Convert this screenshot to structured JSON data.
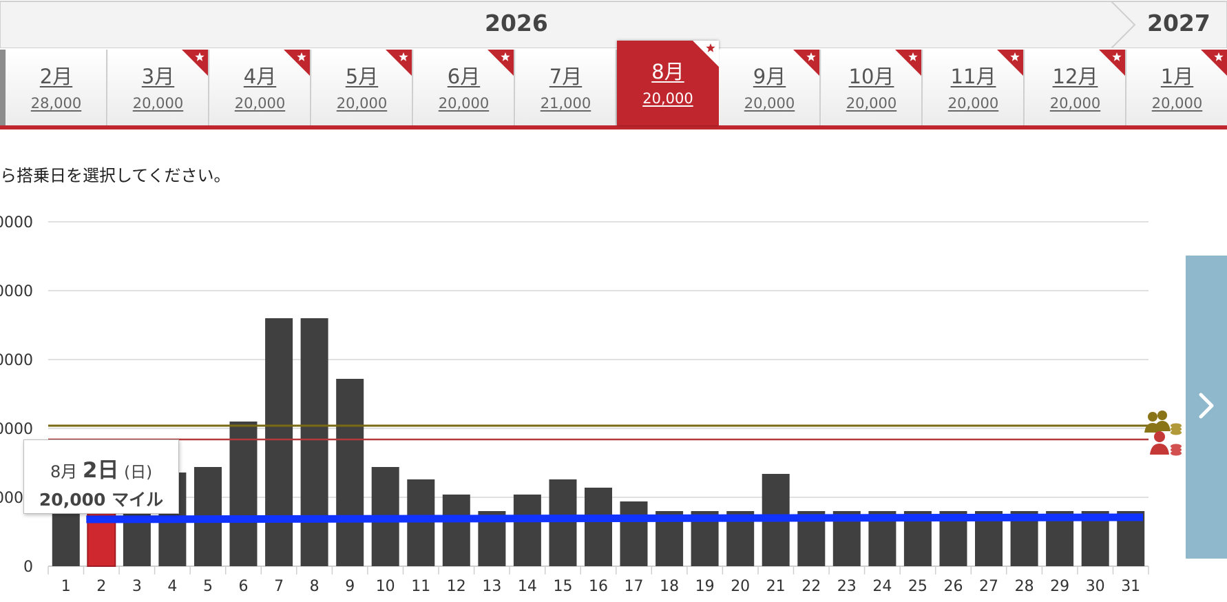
{
  "year_bar": {
    "current_year": "2026",
    "next_year": "2027"
  },
  "month_tabs": [
    {
      "label": "2月",
      "miles": "28,000",
      "flag": false,
      "active": false
    },
    {
      "label": "3月",
      "miles": "20,000",
      "flag": true,
      "active": false
    },
    {
      "label": "4月",
      "miles": "20,000",
      "flag": true,
      "active": false
    },
    {
      "label": "5月",
      "miles": "20,000",
      "flag": true,
      "active": false
    },
    {
      "label": "6月",
      "miles": "20,000",
      "flag": true,
      "active": false
    },
    {
      "label": "7月",
      "miles": "21,000",
      "flag": false,
      "active": false
    },
    {
      "label": "8月",
      "miles": "20,000",
      "flag": true,
      "active": true
    },
    {
      "label": "9月",
      "miles": "20,000",
      "flag": true,
      "active": false
    },
    {
      "label": "10月",
      "miles": "20,000",
      "flag": true,
      "active": false
    },
    {
      "label": "11月",
      "miles": "20,000",
      "flag": true,
      "active": false
    },
    {
      "label": "12月",
      "miles": "20,000",
      "flag": true,
      "active": false
    },
    {
      "label": "1月",
      "miles": "20,000",
      "flag": true,
      "active": false
    }
  ],
  "instruction": "ら搭乗日を選択してください。",
  "tooltip": {
    "month": "8月",
    "day": "2日",
    "dow": "(日)",
    "miles": "20,000 マイル"
  },
  "colors": {
    "accent_red": "#c0262d",
    "bar": "#404040",
    "bar_selected": "#d0282f",
    "baseline_blue": "#1133ff",
    "line_olive": "#7a6a12",
    "line_red": "#b23a3a",
    "panel": "#8fb8cc"
  },
  "icons": {
    "next": "chevron-right-icon",
    "legend_top": "group-coins-icon",
    "legend_bottom": "person-coins-icon"
  },
  "chart_data": {
    "type": "bar",
    "categories": [
      "1",
      "2",
      "3",
      "4",
      "5",
      "6",
      "7",
      "8",
      "9",
      "10",
      "11",
      "12",
      "13",
      "14",
      "15",
      "16",
      "17",
      "18",
      "19",
      "20",
      "21",
      "22",
      "23",
      "24",
      "25",
      "26",
      "27",
      "28",
      "29",
      "30",
      "31"
    ],
    "values": [
      20000,
      20000,
      20000,
      34000,
      36000,
      52500,
      90000,
      90000,
      68000,
      36000,
      31500,
      26000,
      20000,
      26000,
      31500,
      28500,
      23500,
      20000,
      20000,
      20000,
      33500,
      20000,
      20000,
      20000,
      20000,
      20000,
      20000,
      20000,
      20000,
      20000,
      20000
    ],
    "selected_index": 1,
    "y_tick_labels": [
      "0",
      "0000",
      "0000",
      "0000",
      "0000",
      "0000"
    ],
    "y_tick_values": [
      0,
      25000,
      50000,
      75000,
      100000,
      125000
    ],
    "ylim": [
      0,
      125000
    ],
    "grid": true,
    "reference_lines": [
      {
        "value": 51000
      },
      {
        "value": 46000
      },
      {
        "value": 17500
      }
    ]
  }
}
